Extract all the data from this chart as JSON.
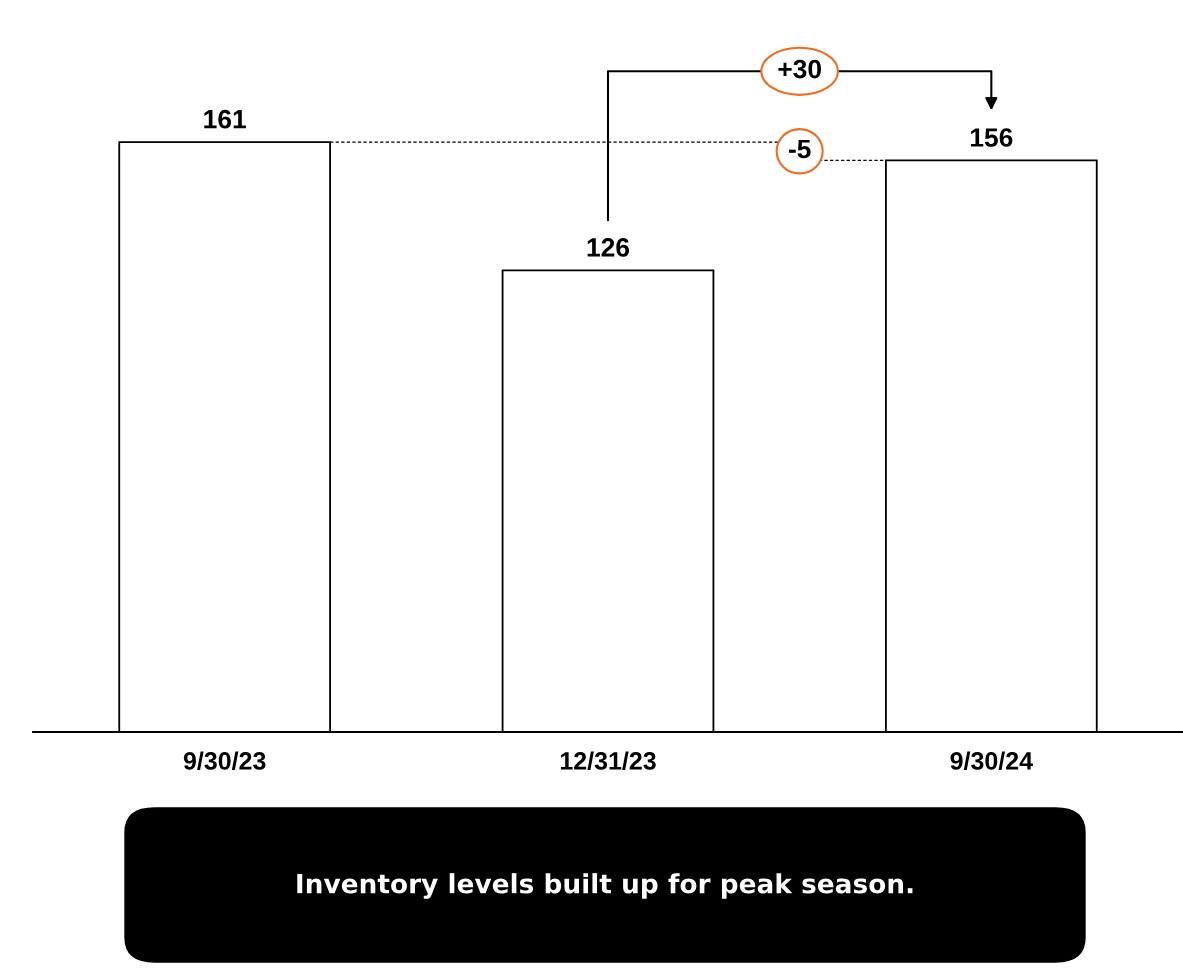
{
  "chart_data": {
    "type": "bar",
    "categories": [
      "9/30/23",
      "12/31/23",
      "9/30/24"
    ],
    "values": [
      161,
      126,
      156
    ],
    "color": "#ffffff",
    "data_labels": true,
    "grid": false,
    "tick_labels": "x",
    "annotations": [
      "+30",
      "-5",
      "Inventory levels built up for peak season."
    ]
  }
}
